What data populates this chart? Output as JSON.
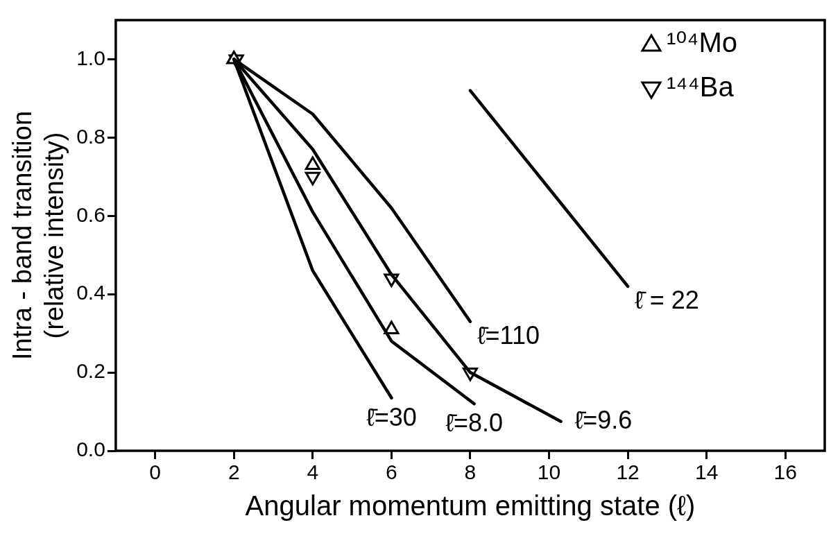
{
  "chart_data": {
    "type": "line",
    "xlabel": "Angular momentum emitting state (ℓ)",
    "ylabel": "Intra - band transition\n(relative intensity)",
    "xlim": [
      -1,
      17
    ],
    "xticks": [
      0,
      2,
      4,
      6,
      8,
      10,
      12,
      14,
      16
    ],
    "ylim": [
      0,
      1.1
    ],
    "yticks": [
      {
        "value": 0,
        "label": "0.0"
      },
      {
        "value": 0.2,
        "label": "0.2"
      },
      {
        "value": 0.4,
        "label": "0.4"
      },
      {
        "value": 0.6,
        "label": "0.6"
      },
      {
        "value": 0.8,
        "label": "0.8"
      },
      {
        "value": 1,
        "label": "1.0"
      }
    ],
    "grid": false,
    "legend": "top right",
    "line_style": "solid",
    "marker": "none",
    "series": [
      {
        "name": "ℓ̄=110",
        "color": "#000000",
        "x": [
          2,
          4,
          6,
          8
        ],
        "values": [
          1.0,
          0.86,
          0.62,
          0.33
        ]
      },
      {
        "name": "ℓ̄=9.6",
        "color": "#000000",
        "x": [
          2,
          4,
          6,
          8,
          10.3
        ],
        "values": [
          1.0,
          0.77,
          0.45,
          0.2,
          0.075
        ]
      },
      {
        "name": "ℓ̄=8.0",
        "color": "#000000",
        "x": [
          2,
          4,
          6,
          8.1
        ],
        "values": [
          1.0,
          0.61,
          0.28,
          0.12
        ]
      },
      {
        "name": "ℓ̄=30",
        "color": "#000000",
        "x": [
          2,
          4,
          6
        ],
        "values": [
          1.0,
          0.46,
          0.135
        ]
      },
      {
        "name": "ℓ̄ = 22",
        "color": "#000000",
        "x": [
          8,
          10,
          12
        ],
        "values": [
          0.92,
          0.67,
          0.42
        ]
      },
      {
        "type": "scatter",
        "name": "¹⁰⁴Mo",
        "color": "#000000",
        "marker": "triangle",
        "x": [
          2,
          4,
          6
        ],
        "values": [
          1.0,
          0.73,
          0.31
        ]
      },
      {
        "type": "scatter",
        "name": "¹⁴⁴Ba",
        "color": "#000000",
        "marker": "triangle_down",
        "x": [
          2.06,
          4,
          6,
          8
        ],
        "values": [
          1.0,
          0.7,
          0.44,
          0.2
        ]
      }
    ]
  }
}
